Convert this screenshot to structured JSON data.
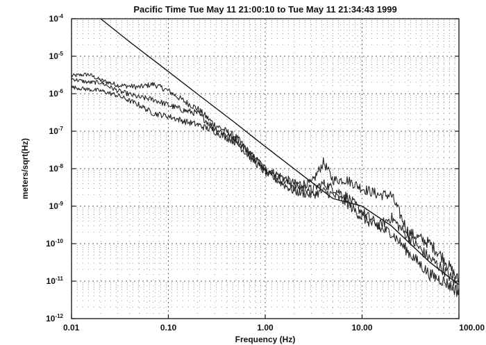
{
  "chart_data": {
    "type": "line",
    "title": "Pacific Time Tue May 11 21:00:10 to Tue May 11 21:34:43 1999",
    "xlabel": "Frequency (Hz)",
    "ylabel": "meters/sqrt(Hz)",
    "xscale": "log",
    "yscale": "log",
    "xlim": [
      0.01,
      100
    ],
    "ylim": [
      1e-12,
      0.0001
    ],
    "grid": true,
    "xticks": [
      {
        "value": 0.01,
        "label": "0.01"
      },
      {
        "value": 0.1,
        "label": "0.10"
      },
      {
        "value": 1,
        "label": "1.00"
      },
      {
        "value": 10,
        "label": "10.00"
      },
      {
        "value": 100,
        "label": "100.00"
      }
    ],
    "yticks": [
      {
        "value": 0.0001,
        "base": "10",
        "exp": "-4"
      },
      {
        "value": 1e-05,
        "base": "10",
        "exp": "-5"
      },
      {
        "value": 1e-06,
        "base": "10",
        "exp": "-6"
      },
      {
        "value": 1e-07,
        "base": "10",
        "exp": "-7"
      },
      {
        "value": 1e-08,
        "base": "10",
        "exp": "-8"
      },
      {
        "value": 1e-09,
        "base": "10",
        "exp": "-9"
      },
      {
        "value": 1e-10,
        "base": "10",
        "exp": "-10"
      },
      {
        "value": 1e-11,
        "base": "10",
        "exp": "-11"
      },
      {
        "value": 1e-12,
        "base": "10",
        "exp": "-12"
      }
    ],
    "series": [
      {
        "kind": "reference",
        "x": [
          0.02,
          0.04,
          0.1,
          0.2,
          0.5,
          0.8,
          1,
          2,
          5,
          10,
          20,
          50,
          100
        ],
        "y": [
          0.0001,
          2.4e-05,
          3.9e-06,
          9.8e-07,
          1.6e-07,
          6.1e-08,
          3.9e-08,
          9.8e-09,
          1.6e-09,
          1e-09,
          3e-10,
          3.2e-11,
          8e-12
        ]
      },
      {
        "kind": "noise",
        "x": [
          0.01,
          0.015,
          0.02,
          0.03,
          0.05,
          0.07,
          0.1,
          0.15,
          0.2,
          0.3,
          0.5,
          0.7,
          1,
          1.5,
          2,
          3,
          4,
          5,
          7,
          10,
          15,
          20,
          30,
          50,
          70,
          100
        ],
        "y": [
          3e-06,
          3.3e-06,
          2.3e-06,
          1.7e-06,
          1.5e-06,
          1.8e-06,
          1.2e-06,
          6e-07,
          4e-07,
          1.5e-07,
          7e-08,
          2.5e-08,
          1e-08,
          6e-09,
          4e-09,
          4e-09,
          1.5e-08,
          5e-09,
          5e-09,
          3e-09,
          2e-09,
          2e-09,
          2e-10,
          1e-10,
          4e-11,
          1e-11
        ]
      },
      {
        "kind": "noise",
        "x": [
          0.01,
          0.015,
          0.02,
          0.03,
          0.05,
          0.07,
          0.1,
          0.15,
          0.2,
          0.3,
          0.5,
          0.7,
          1,
          1.5,
          2,
          3,
          4,
          5,
          7,
          10,
          15,
          20,
          30,
          50,
          70,
          100
        ],
        "y": [
          2.5e-06,
          2e-06,
          2e-06,
          1.2e-06,
          8e-07,
          7e-07,
          5e-07,
          3.5e-07,
          3e-07,
          1.2e-07,
          6e-08,
          2.5e-08,
          1e-08,
          5e-09,
          3.5e-09,
          2.8e-09,
          4e-09,
          3e-09,
          1.8e-09,
          7e-10,
          3e-10,
          5e-10,
          1.5e-10,
          4e-11,
          2e-11,
          7e-12
        ]
      },
      {
        "kind": "noise",
        "x": [
          0.01,
          0.015,
          0.02,
          0.03,
          0.05,
          0.07,
          0.1,
          0.15,
          0.2,
          0.3,
          0.5,
          0.7,
          1,
          1.5,
          2,
          3,
          4,
          5,
          7,
          10,
          15,
          20,
          30,
          50,
          70,
          100
        ],
        "y": [
          1.5e-06,
          1.3e-06,
          1.2e-06,
          9e-07,
          5e-07,
          3e-07,
          2.5e-07,
          1.8e-07,
          1.5e-07,
          1e-07,
          5e-08,
          2e-08,
          8e-09,
          4e-09,
          2.5e-09,
          2e-09,
          2.5e-09,
          2e-09,
          1.2e-09,
          5e-10,
          2.5e-10,
          2e-10,
          6e-11,
          1.5e-11,
          1e-11,
          5e-12
        ]
      }
    ]
  }
}
